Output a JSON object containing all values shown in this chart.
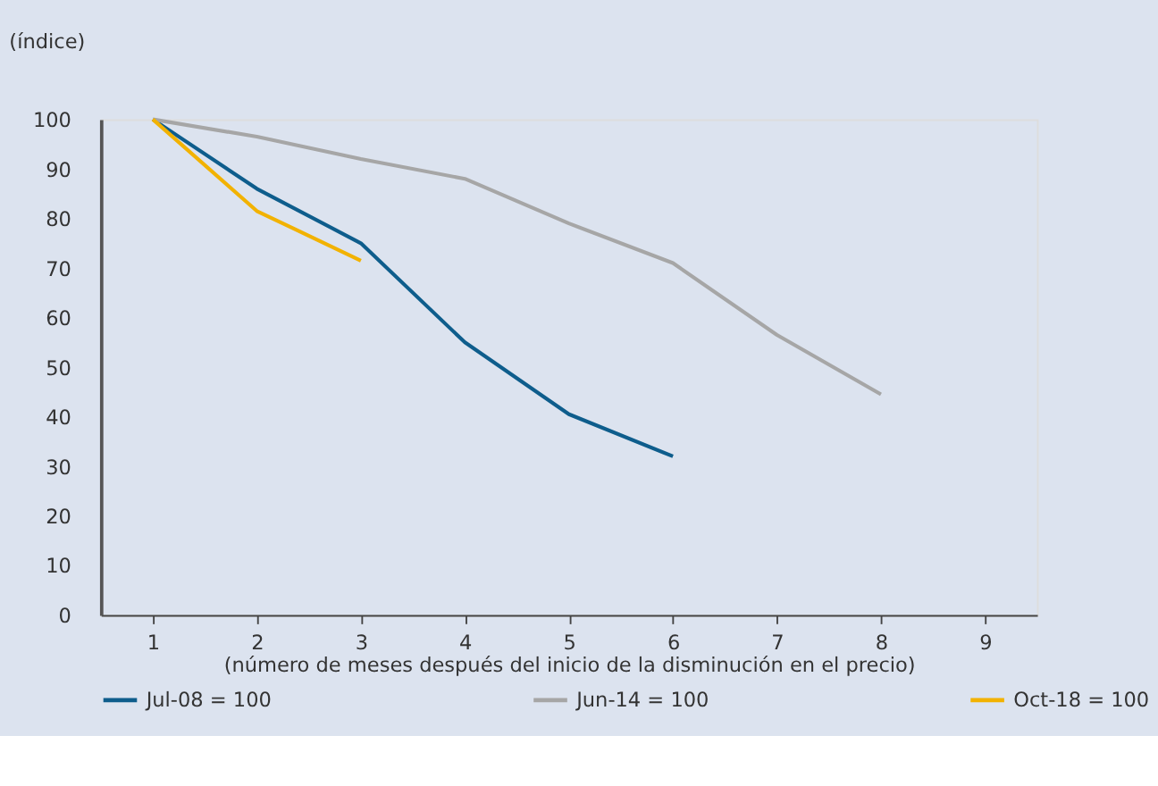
{
  "chart_data": {
    "type": "line",
    "ylabel": "(índice)",
    "xlabel": "(número de meses después del inicio de la disminución en el precio)",
    "categories": [
      "1",
      "2",
      "3",
      "4",
      "5",
      "6",
      "7",
      "8",
      "9"
    ],
    "series": [
      {
        "name": "Jul-08 = 100",
        "color": "#0e5d8c",
        "values": [
          100,
          86,
          75,
          55,
          40.5,
          32,
          null,
          null,
          null
        ]
      },
      {
        "name": "Jun-14 = 100",
        "color": "#a6a6a6",
        "values": [
          100,
          96.5,
          92,
          88,
          79,
          71,
          56.5,
          44.5,
          null
        ]
      },
      {
        "name": "Oct-18 = 100",
        "color": "#f2b200",
        "values": [
          100,
          81.5,
          71.5,
          null,
          null,
          null,
          null,
          null,
          null
        ]
      }
    ],
    "ylim": [
      0,
      100
    ],
    "yticks": [
      0,
      10,
      20,
      30,
      40,
      50,
      60,
      70,
      80,
      90,
      100
    ],
    "grid": false,
    "legend": "bottom",
    "marker": "none",
    "line_style": "solid"
  }
}
